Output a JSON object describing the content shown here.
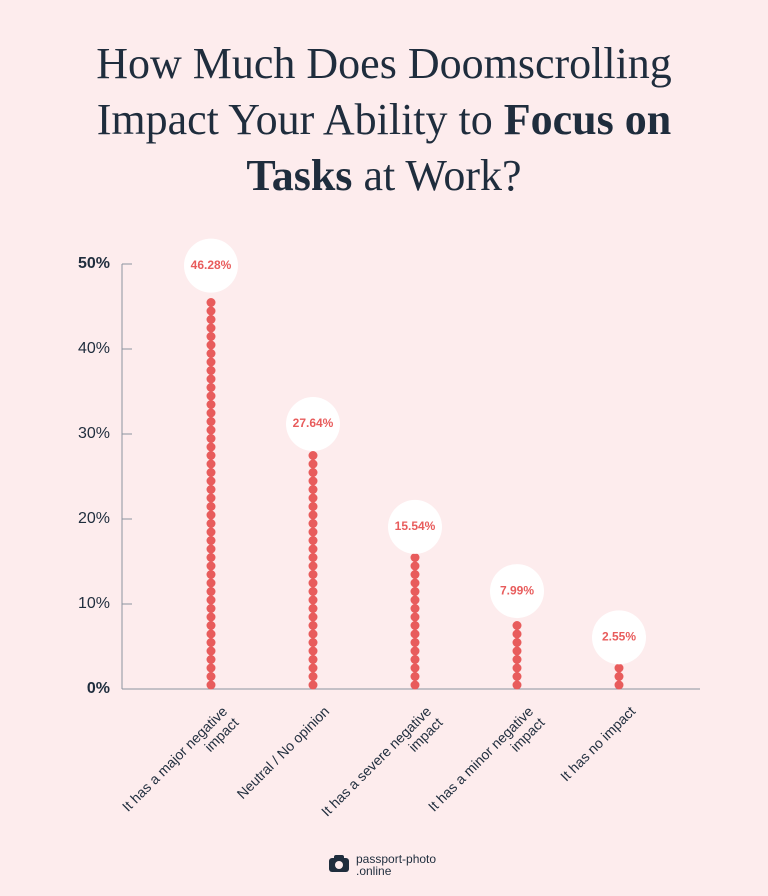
{
  "chart_data": {
    "type": "dot-column",
    "title": [
      "How Much Does Doomscrolling Impact Your Ability to ",
      "Focus on Tasks",
      " at Work?"
    ],
    "categories": [
      "It has a major negative impact",
      "Neutral / No opinion",
      "It has a severe negative impact",
      "It has a minor negative impact",
      "It has no impact"
    ],
    "values": [
      46.28,
      27.64,
      15.54,
      7.99,
      2.55
    ],
    "value_labels": [
      "46.28%",
      "27.64%",
      "15.54%",
      "7.99%",
      "2.55%"
    ],
    "color": "#e85c5c",
    "ylim": [
      0,
      50
    ],
    "yticks": [
      {
        "value": 0,
        "label": "0%"
      },
      {
        "value": 10,
        "label": "10%"
      },
      {
        "value": 20,
        "label": "20%"
      },
      {
        "value": 30,
        "label": "30%"
      },
      {
        "value": 40,
        "label": "40%"
      },
      {
        "value": 50,
        "label": "50%"
      }
    ]
  },
  "footer": {
    "logo": [
      "passport-photo",
      ".online"
    ]
  }
}
